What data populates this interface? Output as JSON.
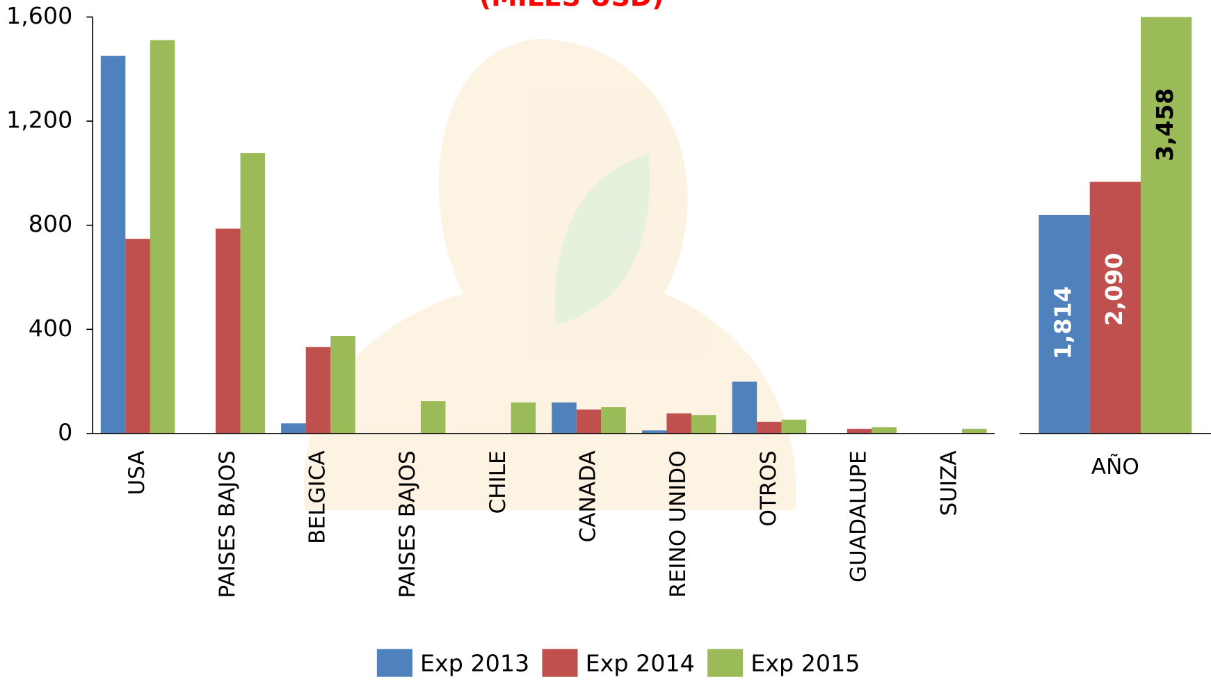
{
  "chart_data": [
    {
      "type": "bar",
      "title": "(MILES USD)",
      "title_color": "#ff0000",
      "categories": [
        "USA",
        "PAISES BAJOS",
        "BELGICA",
        "PAISES BAJOS",
        "CHILE",
        "CANADA",
        "REINO UNIDO",
        "OTROS",
        "GUADALUPE",
        "SUIZA"
      ],
      "series": [
        {
          "name": "Exp 2013",
          "color": "#4f81bd",
          "values": [
            1451,
            0,
            39,
            0,
            0,
            119,
            12,
            199,
            0,
            0
          ]
        },
        {
          "name": "Exp 2014",
          "color": "#c0504d",
          "values": [
            748,
            787,
            332,
            0,
            0,
            92,
            77,
            45,
            18,
            0
          ]
        },
        {
          "name": "Exp 2015",
          "color": "#9bbb59",
          "values": [
            1511,
            1077,
            374,
            125,
            119,
            101,
            71,
            53,
            24,
            18
          ]
        }
      ],
      "ylim": [
        0,
        1600
      ],
      "yticks": [
        0,
        400,
        800,
        {
          "value": 1200,
          "label": "1,200"
        },
        {
          "value": 1600,
          "label": "1,600"
        }
      ],
      "legend": "bottom"
    },
    {
      "type": "bar",
      "categories": [
        "AÑO"
      ],
      "series": [
        {
          "color": "#4f81bd",
          "values": [
            1814
          ],
          "value_labels": [
            "1,814"
          ],
          "label_color": "#ffffff"
        },
        {
          "color": "#c0504d",
          "values": [
            2090
          ],
          "value_labels": [
            "2,090"
          ],
          "label_color": "#ffffff"
        },
        {
          "color": "#9bbb59",
          "values": [
            3458
          ],
          "value_labels": [
            "3,458"
          ],
          "label_color": "#000000"
        }
      ],
      "ylim": [
        0,
        3458
      ]
    }
  ]
}
